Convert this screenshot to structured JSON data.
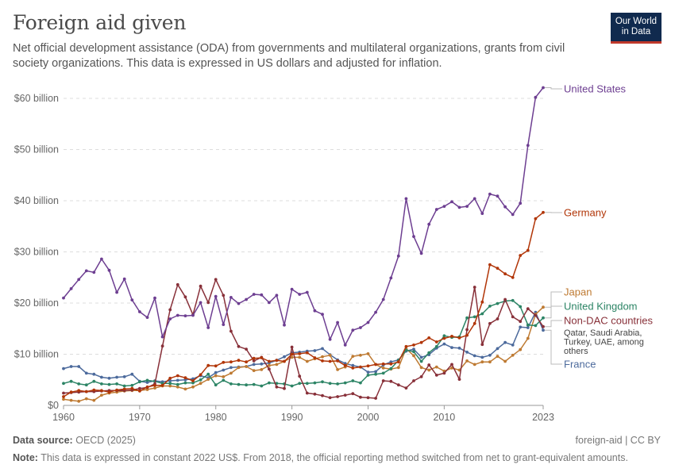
{
  "header": {
    "title": "Foreign aid given",
    "subtitle": "Net official development assistance (ODA) from governments and multilateral organizations, grants from civil society organizations. This data is expressed in US dollars and adjusted for inflation.",
    "logo_line1": "Our World",
    "logo_line2": "in Data"
  },
  "footer": {
    "source_label": "Data source:",
    "source_value": "OECD (2025)",
    "note_label": "Note:",
    "note_value": "This data is expressed in constant 2022 US$. From 2018, the official reporting method switched from net to grant-equivalent amounts.",
    "slug": "foreign-aid | CC BY"
  },
  "colors": {
    "united_states": "#6d3e91",
    "germany": "#b13507",
    "japan": "#be7a32",
    "united_kingdom": "#2c8465",
    "non_dac": "#883039",
    "france": "#4c6a9c"
  },
  "chart_data": {
    "type": "line",
    "x_start": 1960,
    "x_end": 2023,
    "ylim": [
      0,
      65
    ],
    "y_ticks": [
      {
        "value": 0,
        "label": "$0"
      },
      {
        "value": 10,
        "label": "$10 billion"
      },
      {
        "value": 20,
        "label": "$20 billion"
      },
      {
        "value": 30,
        "label": "$30 billion"
      },
      {
        "value": 40,
        "label": "$40 billion"
      },
      {
        "value": 50,
        "label": "$50 billion"
      },
      {
        "value": 60,
        "label": "$60 billion"
      }
    ],
    "x_ticks": [
      {
        "value": 1960,
        "label": "1960"
      },
      {
        "value": 1970,
        "label": "1970"
      },
      {
        "value": 1980,
        "label": "1980"
      },
      {
        "value": 1990,
        "label": "1990"
      },
      {
        "value": 2000,
        "label": "2000"
      },
      {
        "value": 2010,
        "label": "2010"
      },
      {
        "value": 2023,
        "label": "2023"
      }
    ],
    "grid": "horizontal-dashed",
    "legend": "right, labels at line ends",
    "series": [
      {
        "name": "United States",
        "color": "#6d3e91",
        "x_from": 1960,
        "values": [
          21.0,
          22.8,
          24.6,
          26.3,
          26.0,
          28.6,
          26.4,
          22.1,
          24.7,
          20.6,
          18.3,
          17.2,
          21.0,
          13.4,
          16.9,
          17.6,
          17.5,
          17.6,
          20.1,
          15.2,
          21.3,
          15.8,
          21.1,
          19.9,
          20.7,
          21.7,
          21.6,
          20.1,
          21.5,
          15.7,
          22.7,
          21.7,
          22.1,
          18.5,
          17.8,
          12.9,
          16.2,
          11.8,
          14.7,
          15.2,
          16.2,
          18.2,
          20.7,
          24.9,
          29.2,
          40.4,
          33.0,
          29.7,
          35.4,
          38.3,
          38.9,
          39.8,
          38.7,
          38.9,
          40.4,
          37.5,
          41.3,
          40.9,
          38.8,
          37.3,
          39.5,
          50.8,
          60.2,
          62.1
        ]
      },
      {
        "name": "Germany",
        "color": "#b13507",
        "x_from": 1960,
        "values": [
          1.7,
          2.6,
          2.9,
          2.7,
          3.0,
          2.9,
          2.6,
          3.0,
          3.2,
          3.3,
          2.8,
          3.6,
          3.9,
          3.9,
          5.3,
          5.8,
          5.4,
          4.8,
          6.0,
          7.8,
          7.7,
          8.4,
          8.5,
          8.8,
          8.5,
          9.2,
          9.3,
          8.6,
          8.8,
          8.6,
          10.0,
          10.1,
          10.3,
          9.3,
          8.7,
          8.6,
          8.7,
          7.8,
          7.3,
          7.5,
          7.7,
          8.0,
          8.1,
          8.1,
          8.5,
          11.5,
          11.8,
          12.3,
          13.2,
          12.4,
          13.1,
          13.5,
          13.2,
          13.7,
          16.0,
          20.2,
          27.5,
          26.8,
          25.7,
          25.0,
          29.3,
          30.3,
          36.5,
          37.7
        ]
      },
      {
        "name": "Japan",
        "color": "#be7a32",
        "x_from": 1960,
        "values": [
          1.2,
          1.0,
          0.8,
          1.3,
          1.0,
          2.0,
          2.4,
          2.6,
          2.8,
          2.9,
          2.9,
          3.1,
          3.4,
          3.8,
          3.8,
          3.6,
          3.2,
          3.6,
          4.3,
          5.1,
          5.8,
          5.6,
          6.3,
          7.4,
          7.6,
          6.8,
          7.0,
          7.8,
          8.0,
          8.6,
          9.4,
          9.4,
          8.6,
          9.1,
          9.5,
          9.8,
          7.0,
          7.5,
          9.6,
          9.8,
          10.1,
          8.0,
          7.3,
          7.1,
          7.4,
          11.1,
          9.7,
          7.4,
          6.9,
          7.5,
          6.7,
          7.3,
          6.9,
          8.7,
          8.0,
          8.5,
          8.5,
          9.6,
          8.6,
          9.8,
          10.9,
          13.1,
          17.8,
          19.2
        ]
      },
      {
        "name": "United Kingdom",
        "color": "#2c8465",
        "x_from": 1960,
        "values": [
          4.3,
          4.7,
          4.2,
          4.0,
          4.7,
          4.2,
          4.1,
          4.2,
          3.8,
          3.9,
          4.6,
          4.9,
          4.7,
          4.3,
          4.3,
          4.1,
          4.4,
          4.4,
          5.0,
          6.1,
          4.0,
          4.9,
          4.2,
          4.1,
          4.0,
          4.1,
          3.8,
          4.4,
          4.3,
          4.2,
          3.8,
          4.3,
          4.3,
          4.4,
          4.6,
          4.3,
          4.2,
          4.4,
          4.8,
          4.4,
          5.9,
          6.1,
          6.3,
          7.2,
          8.8,
          10.8,
          10.5,
          8.6,
          10.3,
          11.5,
          13.6,
          13.3,
          13.4,
          17.1,
          17.3,
          17.9,
          19.4,
          19.9,
          20.4,
          20.5,
          19.3,
          15.7,
          15.6,
          17.1
        ]
      },
      {
        "name": "Non-DAC countries",
        "color": "#883039",
        "x_from": 1960,
        "values": [
          2.4,
          2.5,
          2.6,
          2.7,
          2.7,
          2.8,
          2.9,
          2.9,
          2.9,
          3.0,
          3.3,
          3.5,
          4.2,
          11.6,
          18.7,
          23.6,
          21.2,
          17.7,
          23.3,
          20.1,
          24.6,
          21.5,
          14.5,
          11.5,
          11.0,
          8.7,
          9.4,
          7.1,
          3.6,
          3.3,
          11.4,
          5.7,
          2.4,
          2.2,
          1.9,
          1.5,
          1.7,
          2.0,
          2.3,
          1.6,
          1.5,
          1.4,
          4.8,
          4.7,
          4.0,
          3.4,
          4.8,
          5.6,
          7.9,
          5.9,
          6.3,
          8.0,
          5.1,
          14.8,
          23.1,
          11.9,
          16.0,
          16.9,
          20.7,
          17.3,
          16.4,
          18.9,
          17.6,
          15.4
        ]
      },
      {
        "name": "France",
        "color": "#4c6a9c",
        "x_from": 1960,
        "values": [
          7.2,
          7.6,
          7.6,
          6.3,
          6.1,
          5.5,
          5.3,
          5.5,
          5.6,
          6.1,
          4.7,
          4.5,
          4.8,
          4.6,
          4.8,
          4.9,
          5.0,
          5.2,
          5.8,
          5.4,
          6.4,
          6.9,
          7.4,
          7.5,
          7.6,
          8.0,
          8.1,
          8.3,
          8.8,
          9.5,
          10.3,
          10.4,
          10.6,
          10.7,
          11.1,
          9.9,
          8.9,
          8.2,
          7.8,
          7.5,
          6.5,
          6.6,
          7.9,
          8.5,
          8.9,
          10.6,
          11.0,
          9.4,
          9.9,
          11.2,
          12.0,
          11.3,
          11.2,
          10.4,
          9.7,
          9.4,
          9.8,
          11.1,
          12.3,
          11.8,
          15.3,
          15.2,
          18.2,
          14.7
        ]
      }
    ],
    "legend_labels": [
      {
        "text": "United States",
        "series": 0
      },
      {
        "text": "Germany",
        "series": 1
      },
      {
        "text": "Japan",
        "series": 2
      },
      {
        "text": "United Kingdom",
        "series": 3
      },
      {
        "text": "Non-DAC countries",
        "series": 4
      },
      {
        "text": "France",
        "series": 5
      }
    ],
    "annotation_lines": [
      "Qatar, Saudi Arabia,",
      "Turkey, UAE, among",
      "others"
    ]
  }
}
